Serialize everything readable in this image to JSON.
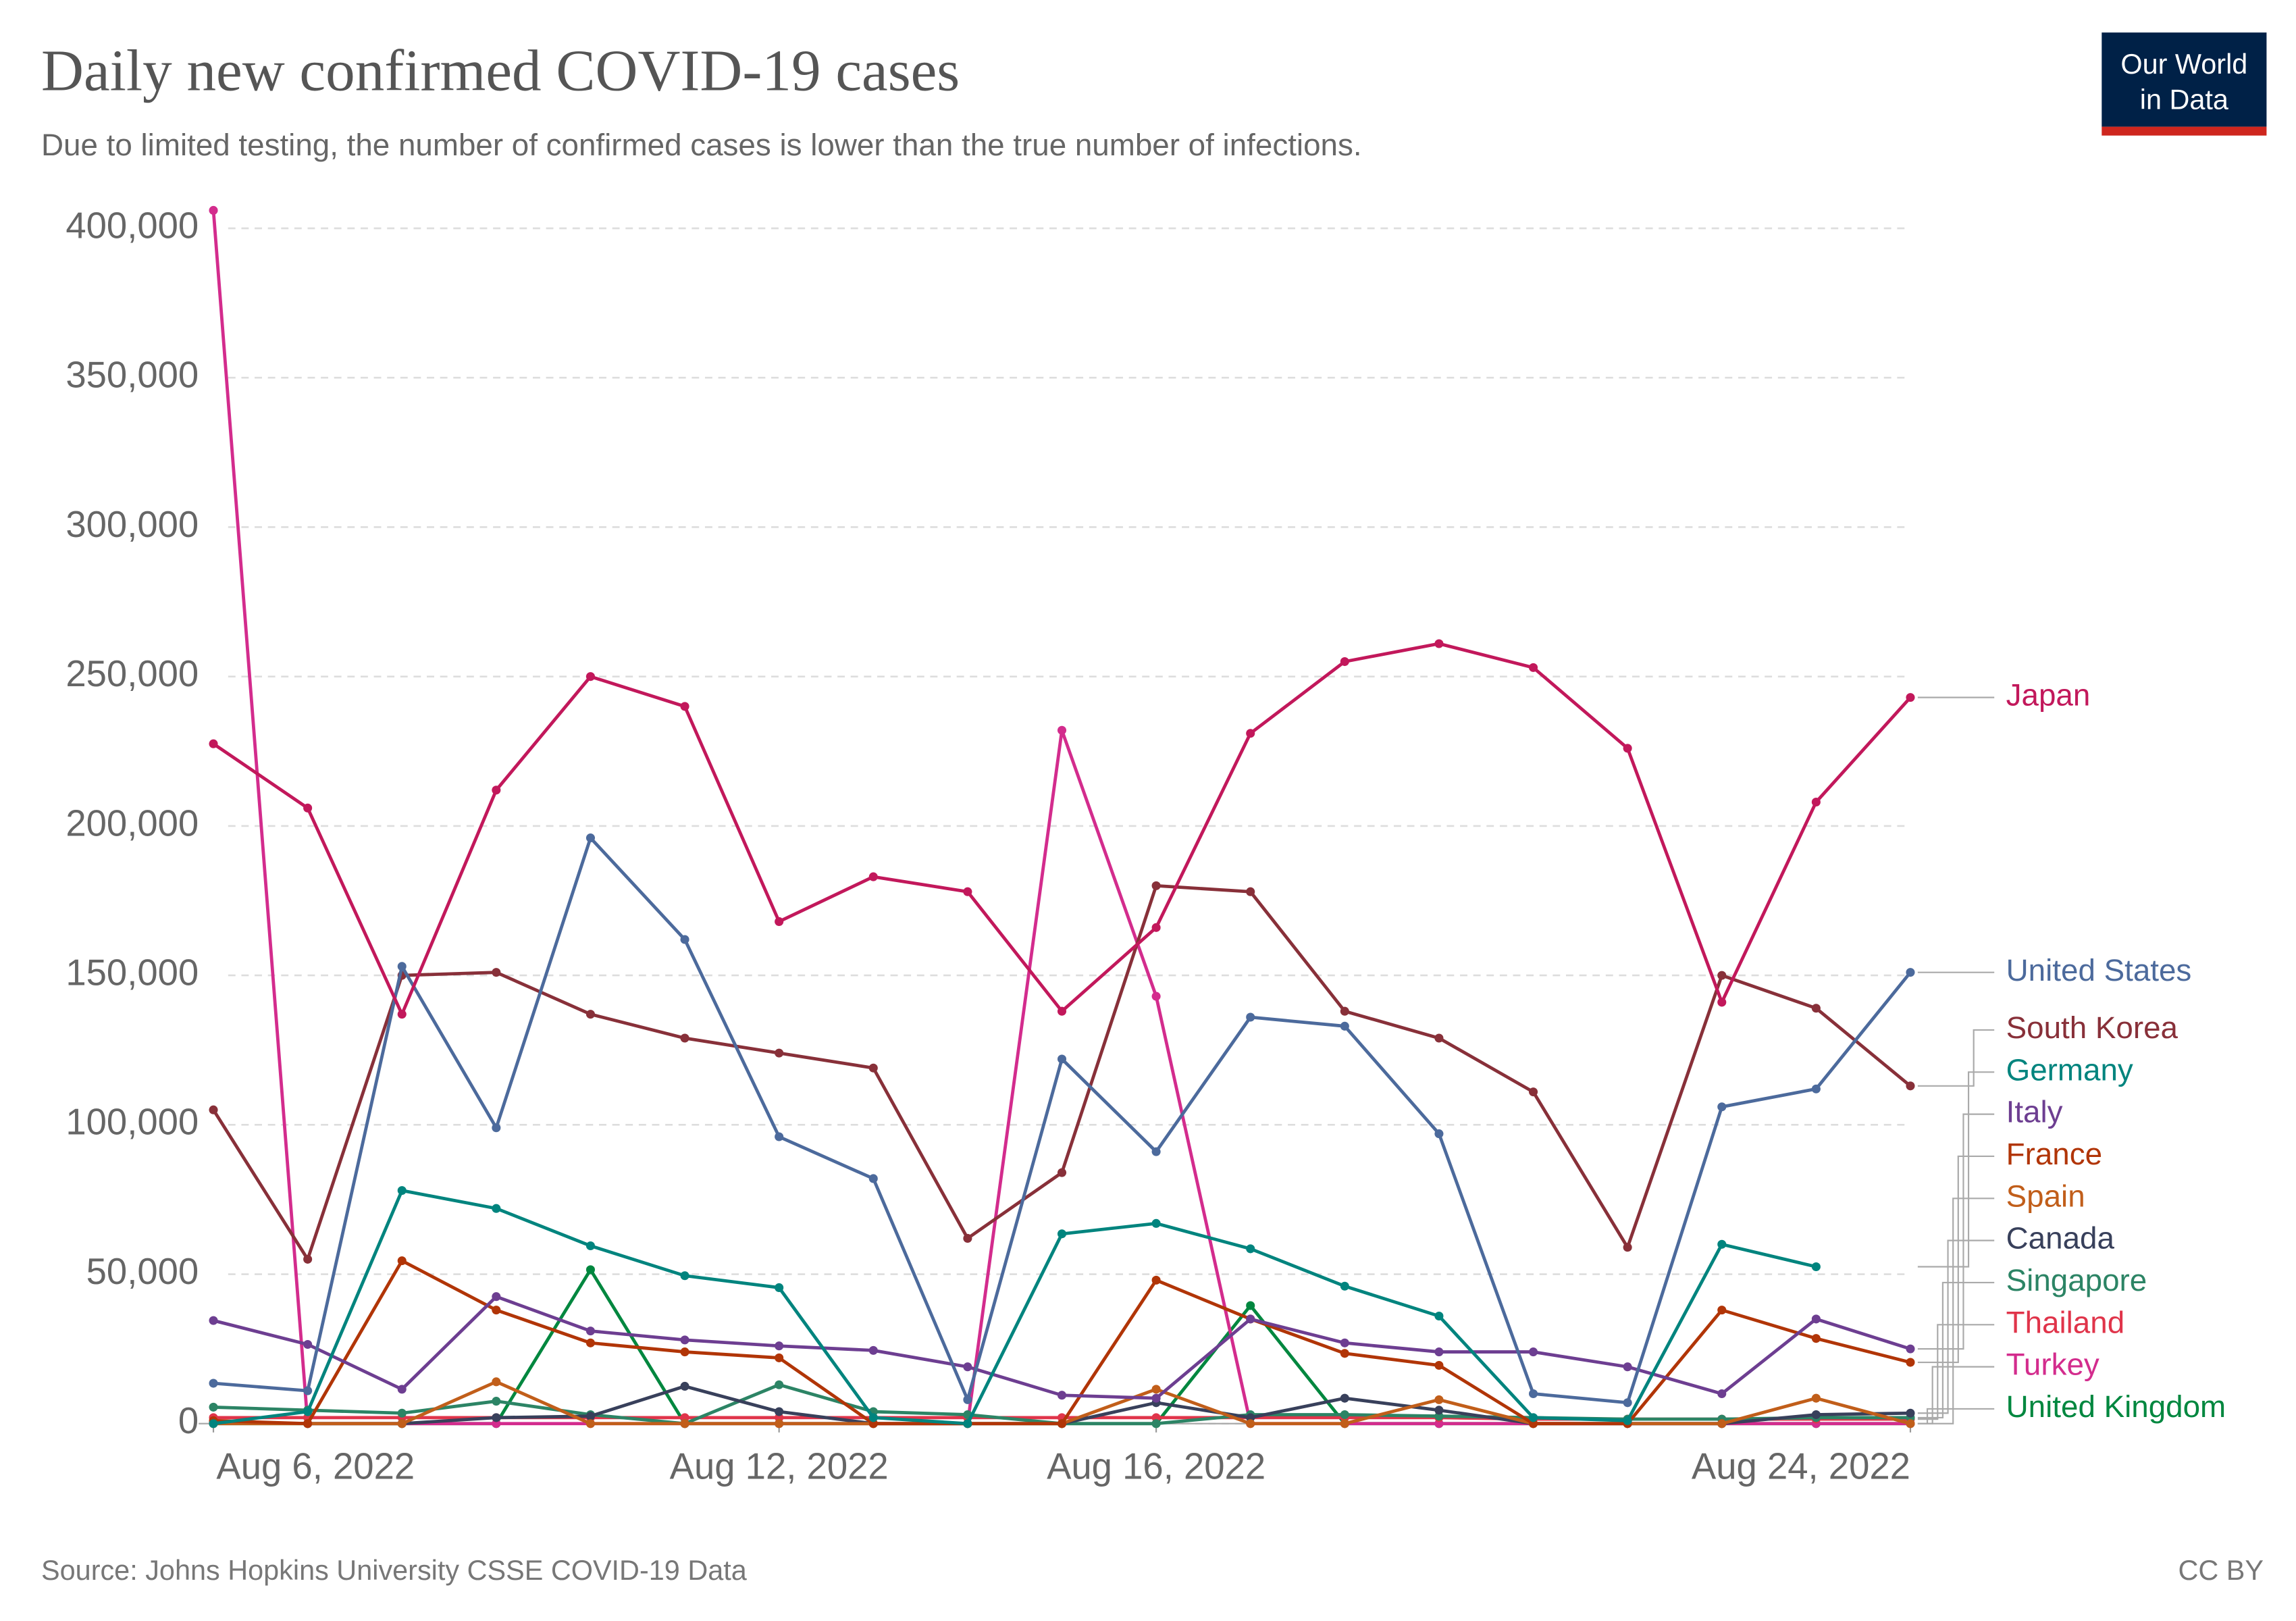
{
  "chart_data": {
    "type": "line",
    "title": "Daily new confirmed COVID-19 cases",
    "subtitle": "Due to limited testing, the number of confirmed cases is lower than the true number of infections.",
    "source": "Source: Johns Hopkins University CSSE COVID-19 Data",
    "license": "CC BY",
    "logo": [
      "Our World",
      "in Data"
    ],
    "x": [
      "2022-08-06",
      "2022-08-07",
      "2022-08-08",
      "2022-08-09",
      "2022-08-10",
      "2022-08-11",
      "2022-08-12",
      "2022-08-13",
      "2022-08-14",
      "2022-08-15",
      "2022-08-16",
      "2022-08-17",
      "2022-08-18",
      "2022-08-19",
      "2022-08-20",
      "2022-08-21",
      "2022-08-22",
      "2022-08-23",
      "2022-08-24"
    ],
    "xlim": [
      "2022-08-06",
      "2022-08-24"
    ],
    "xticks": [
      {
        "value": "2022-08-06",
        "label": "Aug 6, 2022"
      },
      {
        "value": "2022-08-12",
        "label": "Aug 12, 2022"
      },
      {
        "value": "2022-08-16",
        "label": "Aug 16, 2022"
      },
      {
        "value": "2022-08-24",
        "label": "Aug 24, 2022"
      }
    ],
    "ylim": [
      0,
      410000
    ],
    "yticks": [
      0,
      {
        "value": 50000,
        "label": "50,000"
      },
      {
        "value": 100000,
        "label": "100,000"
      },
      {
        "value": 150000,
        "label": "150,000"
      },
      {
        "value": 200000,
        "label": "200,000"
      },
      {
        "value": 250000,
        "label": "250,000"
      },
      {
        "value": 300000,
        "label": "300,000"
      },
      {
        "value": 350000,
        "label": "350,000"
      },
      {
        "value": 400000,
        "label": "400,000"
      }
    ],
    "grid": true,
    "legend": "right",
    "series": [
      {
        "name": "Japan",
        "color": "#c2185b",
        "values": [
          227500,
          206000,
          137000,
          212000,
          250000,
          240000,
          168000,
          183000,
          178000,
          138000,
          166000,
          231000,
          255000,
          261000,
          253000,
          226000,
          141000,
          208000,
          243000
        ]
      },
      {
        "name": "United States",
        "color": "#4c6a9c",
        "values": [
          13500,
          11000,
          153000,
          99000,
          196000,
          162000,
          96000,
          82000,
          8000,
          122000,
          91000,
          136000,
          133000,
          97000,
          10000,
          7000,
          106000,
          112000,
          151000
        ]
      },
      {
        "name": "South Korea",
        "color": "#883039",
        "values": [
          105000,
          55000,
          150000,
          151000,
          137000,
          129000,
          124000,
          119000,
          62000,
          84000,
          180000,
          178000,
          138000,
          129000,
          111000,
          59000,
          150000,
          139000,
          113000
        ]
      },
      {
        "name": "Germany",
        "color": "#00847e",
        "values": [
          0,
          4000,
          78000,
          72000,
          59500,
          49500,
          45500,
          2000,
          0,
          63500,
          67000,
          58500,
          46000,
          36000,
          2000,
          1000,
          60000,
          52500,
          null
        ]
      },
      {
        "name": "Italy",
        "color": "#6d3e91",
        "values": [
          34500,
          26500,
          11500,
          42500,
          31000,
          28000,
          26000,
          24500,
          19000,
          9500,
          8500,
          35000,
          27000,
          24000,
          24000,
          19000,
          10000,
          35000,
          25000
        ]
      },
      {
        "name": "France",
        "color": "#b13507",
        "values": [
          1000,
          0,
          54500,
          38000,
          27000,
          24000,
          22000,
          0,
          0,
          0,
          48000,
          35000,
          23500,
          19500,
          0,
          0,
          38000,
          28500,
          20500
        ]
      },
      {
        "name": "Spain",
        "color": "#c15e1a",
        "values": [
          0,
          0,
          0,
          14000,
          0,
          0,
          0,
          0,
          0,
          0,
          11500,
          0,
          0,
          8000,
          0,
          0,
          0,
          8500,
          0
        ]
      },
      {
        "name": "Canada",
        "color": "#38405b",
        "values": [
          500,
          0,
          0,
          2000,
          2500,
          12500,
          4000,
          0,
          0,
          0,
          7000,
          2000,
          8500,
          4500,
          0,
          0,
          0,
          3000,
          3500
        ]
      },
      {
        "name": "Singapore",
        "color": "#2c8465",
        "values": [
          5500,
          4500,
          3500,
          7500,
          3000,
          0,
          13000,
          4000,
          3000,
          0,
          0,
          3000,
          3000,
          2500,
          2000,
          1500,
          1500,
          2000,
          2000
        ]
      },
      {
        "name": "Thailand",
        "color": "#e0344a",
        "values": [
          2000,
          2000,
          2000,
          2000,
          2000,
          2000,
          2000,
          2000,
          2000,
          2000,
          2000,
          2000,
          2000,
          2000,
          1500,
          1500,
          1500,
          1500,
          1500
        ]
      },
      {
        "name": "Turkey",
        "color": "#d32c8d",
        "values": [
          406000,
          0,
          0,
          0,
          0,
          0,
          0,
          0,
          0,
          232000,
          143000,
          0,
          0,
          0,
          0,
          0,
          0,
          0,
          0
        ]
      },
      {
        "name": "United Kingdom",
        "color": "#00873f",
        "values": [
          0,
          0,
          0,
          0,
          51500,
          0,
          0,
          0,
          0,
          0,
          0,
          39500,
          0,
          0,
          0,
          0,
          0,
          0,
          0
        ]
      }
    ]
  }
}
